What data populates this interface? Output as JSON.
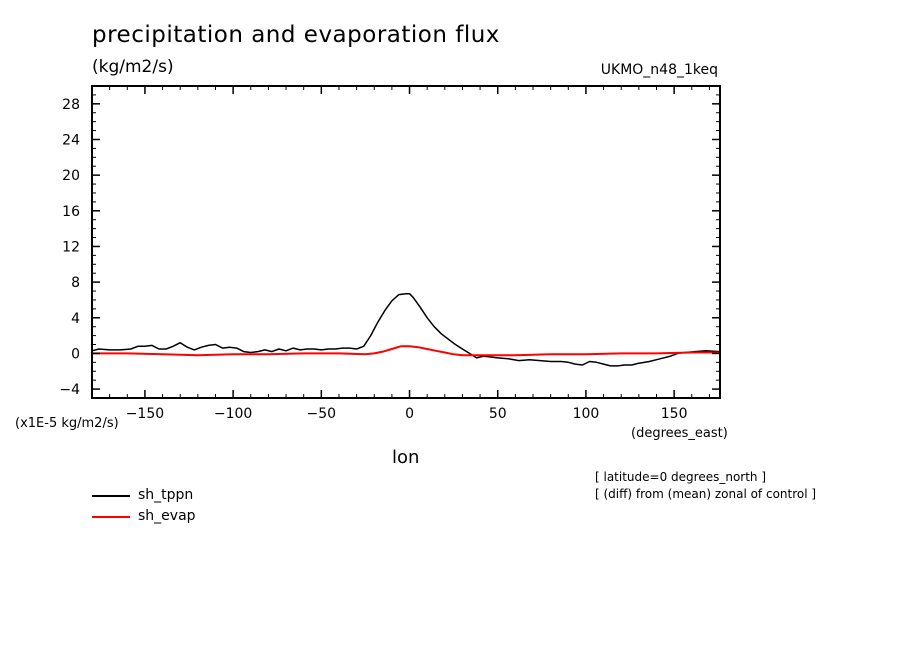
{
  "chart_data": {
    "type": "line",
    "title": "precipitation and evaporation flux",
    "units": "(kg/m2/s)",
    "model": "UKMO_n48_1keq",
    "scale_note": "(x1E-5 kg/m2/s)",
    "xlabel": "lon",
    "xunits": "(degrees_east)",
    "notes": [
      "[ latitude=0 degrees_north ]",
      "[ (diff) from (mean) zonal of control ]"
    ],
    "xlim": [
      -180,
      176
    ],
    "ylim": [
      -5,
      30
    ],
    "xticks": [
      -150,
      -100,
      -50,
      0,
      50,
      100,
      150
    ],
    "xtick_labels": [
      "-150",
      "-100",
      "-50",
      "0",
      "50",
      "100",
      "150"
    ],
    "yticks": [
      -4,
      0,
      4,
      8,
      12,
      16,
      20,
      24,
      28
    ],
    "ytick_labels": [
      "-4",
      "0",
      "4",
      "8",
      "12",
      "16",
      "20",
      "24",
      "28"
    ],
    "grid": false,
    "legend_position": "bottom-left",
    "series": [
      {
        "name": "sh_tppn",
        "color": "#000000",
        "x": [
          -180,
          -176,
          -170,
          -164,
          -158,
          -154,
          -150,
          -146,
          -142,
          -138,
          -134,
          -130,
          -126,
          -122,
          -118,
          -114,
          -110,
          -106,
          -102,
          -98,
          -94,
          -90,
          -86,
          -82,
          -78,
          -74,
          -70,
          -66,
          -62,
          -58,
          -54,
          -50,
          -46,
          -42,
          -38,
          -34,
          -30,
          -26,
          -22,
          -18,
          -14,
          -10,
          -6,
          -2,
          0,
          2,
          6,
          10,
          14,
          18,
          22,
          26,
          30,
          34,
          38,
          42,
          46,
          50,
          56,
          62,
          68,
          74,
          80,
          86,
          90,
          94,
          98,
          102,
          106,
          110,
          114,
          118,
          122,
          126,
          130,
          136,
          142,
          148,
          152,
          156,
          162,
          168,
          176
        ],
        "y": [
          0.3,
          0.5,
          0.4,
          0.4,
          0.5,
          0.8,
          0.8,
          0.9,
          0.5,
          0.5,
          0.8,
          1.2,
          0.7,
          0.4,
          0.7,
          0.9,
          1.0,
          0.6,
          0.7,
          0.6,
          0.2,
          0.1,
          0.2,
          0.4,
          0.2,
          0.5,
          0.3,
          0.6,
          0.4,
          0.5,
          0.5,
          0.4,
          0.5,
          0.5,
          0.6,
          0.6,
          0.5,
          0.8,
          2.0,
          3.5,
          4.8,
          5.9,
          6.6,
          6.7,
          6.7,
          6.3,
          5.2,
          4.0,
          3.0,
          2.2,
          1.6,
          1.0,
          0.5,
          0.0,
          -0.5,
          -0.3,
          -0.4,
          -0.5,
          -0.6,
          -0.8,
          -0.7,
          -0.8,
          -0.9,
          -0.9,
          -1.0,
          -1.2,
          -1.3,
          -0.9,
          -1.0,
          -1.2,
          -1.4,
          -1.4,
          -1.3,
          -1.3,
          -1.1,
          -0.9,
          -0.6,
          -0.3,
          0.0,
          0.1,
          0.2,
          0.3,
          0.2
        ]
      },
      {
        "name": "sh_evap",
        "color": "#ff0000",
        "x": [
          -180,
          -160,
          -140,
          -120,
          -100,
          -80,
          -60,
          -40,
          -25,
          -20,
          -15,
          -10,
          -5,
          0,
          5,
          10,
          15,
          20,
          25,
          30,
          35,
          40,
          60,
          80,
          100,
          120,
          140,
          160,
          176
        ],
        "y": [
          0.0,
          0.0,
          -0.1,
          -0.2,
          -0.1,
          -0.1,
          0.0,
          0.0,
          -0.1,
          0.0,
          0.2,
          0.5,
          0.8,
          0.8,
          0.7,
          0.5,
          0.3,
          0.1,
          -0.1,
          -0.2,
          -0.2,
          -0.2,
          -0.2,
          -0.1,
          -0.1,
          0.0,
          0.0,
          0.1,
          0.1
        ]
      }
    ]
  }
}
